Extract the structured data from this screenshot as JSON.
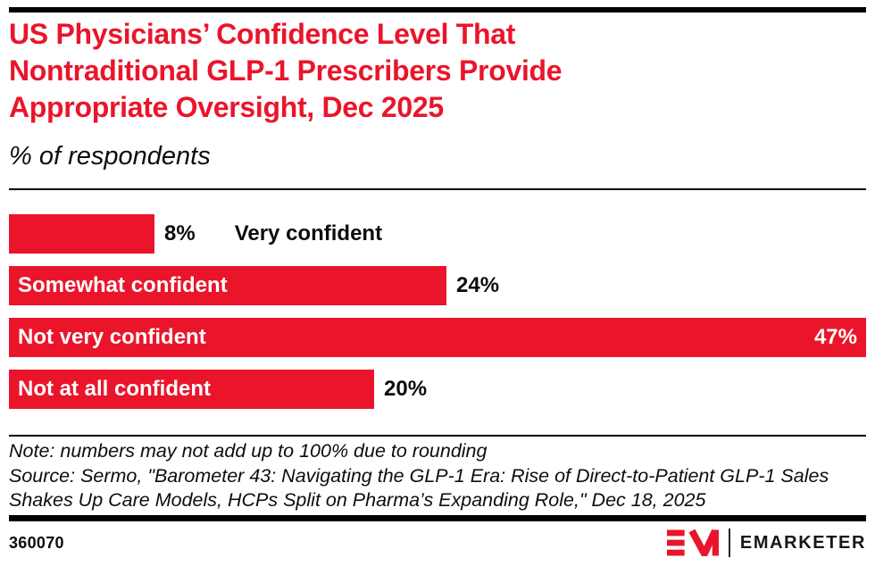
{
  "header": {
    "title_lines": [
      "US Physicians’ Confidence Level That",
      "Nontraditional GLP-1 Prescribers Provide",
      "Appropriate Oversight, Dec 2025"
    ],
    "subtitle": "% of respondents"
  },
  "chart_data": {
    "type": "bar",
    "orientation": "horizontal",
    "title": "US Physicians’ Confidence Level That Nontraditional GLP-1 Prescribers Provide Appropriate Oversight, Dec 2025",
    "subtitle": "% of respondents",
    "categories": [
      "Very confident",
      "Somewhat confident",
      "Not very confident",
      "Not at all confident"
    ],
    "values": [
      8,
      24,
      47,
      20
    ],
    "unit": "%",
    "xlim": [
      0,
      47
    ],
    "grid": false,
    "legend": "none",
    "bar_color": "#EA152B",
    "bars": [
      {
        "label": "Very confident",
        "value": 8,
        "value_label": "8%",
        "label_position": "outside",
        "value_position": "outside"
      },
      {
        "label": "Somewhat confident",
        "value": 24,
        "value_label": "24%",
        "label_position": "inside",
        "value_position": "outside"
      },
      {
        "label": "Not very confident",
        "value": 47,
        "value_label": "47%",
        "label_position": "inside",
        "value_position": "inside"
      },
      {
        "label": "Not at all confident",
        "value": 20,
        "value_label": "20%",
        "label_position": "inside",
        "value_position": "outside"
      }
    ]
  },
  "footer": {
    "note": "Note: numbers may not add up to 100% due to rounding",
    "source": "Source: Sermo, \"Barometer 43: Navigating the GLP-1 Era: Rise of Direct-to-Patient GLP-1 Sales Shakes Up Care Models, HCPs Split on Pharma’s Expanding Role,\" Dec 18, 2025",
    "chart_id": "360070",
    "brand_name": "EMARKETER",
    "brand_red": "#EA152B"
  }
}
